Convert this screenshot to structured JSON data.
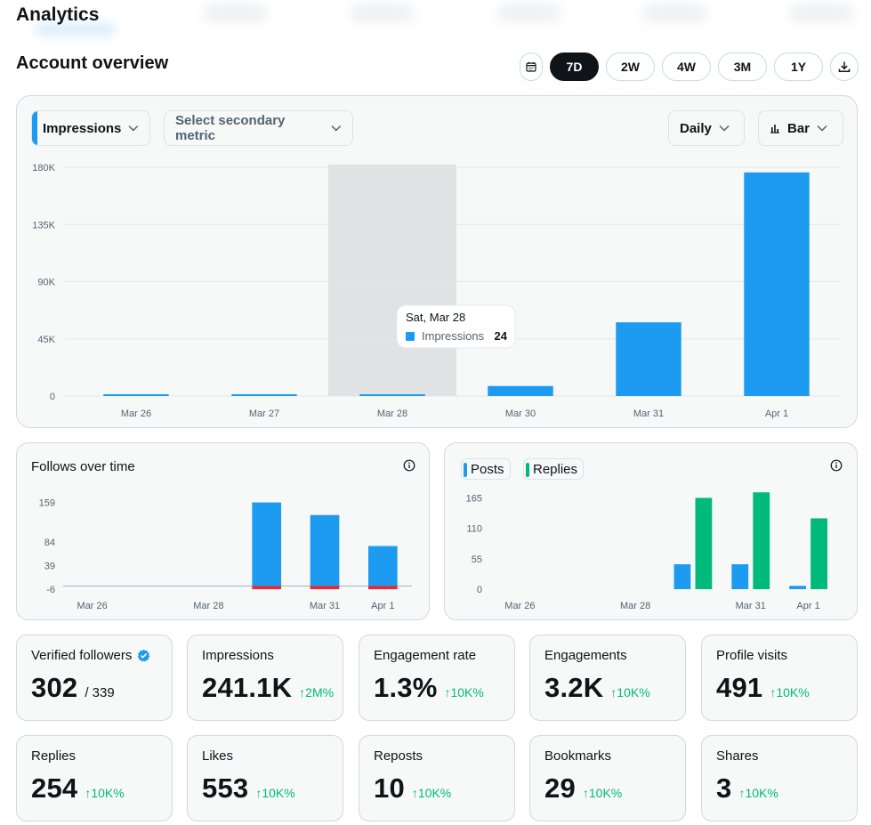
{
  "app": {
    "title": "Analytics"
  },
  "section": {
    "title": "Account overview"
  },
  "range": {
    "options": [
      "7D",
      "2W",
      "4W",
      "3M",
      "1Y"
    ],
    "selected": "7D"
  },
  "main_chart": {
    "primary_metric": "Impressions",
    "secondary_placeholder": "Select secondary metric",
    "granularity": "Daily",
    "chart_type_label": "Bar",
    "tooltip": {
      "date": "Sat, Mar 28",
      "metric": "Impressions",
      "value": "24"
    }
  },
  "follows_chart": {
    "title": "Follows over time"
  },
  "posts_chart": {
    "legend": [
      "Posts",
      "Replies"
    ]
  },
  "colors": {
    "blue": "#1d9bf0",
    "green": "#00ba7c",
    "red": "#f4212e",
    "text": "#0f1419",
    "muted": "#536471"
  },
  "chart_data": [
    {
      "type": "bar",
      "categories": [
        "Mar 26",
        "Mar 27",
        "Mar 28",
        "Mar 30",
        "Mar 31",
        "Apr 1"
      ],
      "series": [
        {
          "name": "Impressions",
          "values": [
            40,
            70,
            24,
            7900,
            58000,
            176000
          ]
        }
      ],
      "yticks": [
        "0",
        "45K",
        "90K",
        "135K",
        "180K"
      ],
      "ylim": [
        0,
        180000
      ],
      "highlight_category": "Mar 28",
      "grid": true
    },
    {
      "type": "bar",
      "title": "Follows over time",
      "x_labels": [
        "Mar 26",
        "Mar 28",
        "Mar 31",
        "Apr 1"
      ],
      "slots": [
        "Mar 26",
        "Mar 27",
        "Mar 28",
        "Mar 30",
        "Mar 31",
        "Apr 1"
      ],
      "series": [
        {
          "values": [
            0,
            0,
            0,
            159,
            135,
            76
          ]
        },
        {
          "values": [
            0,
            0,
            0,
            -6,
            -6,
            -6
          ]
        }
      ],
      "yticks": [
        "-6",
        "39",
        "84",
        "159"
      ],
      "ylim": [
        -6,
        165
      ],
      "grid": false
    },
    {
      "type": "bar",
      "x_labels": [
        "Mar 26",
        "Mar 28",
        "Mar 31",
        "Apr 1"
      ],
      "slots": [
        "Mar 26",
        "Mar 27",
        "Mar 28",
        "Mar 30",
        "Mar 31",
        "Apr 1"
      ],
      "series": [
        {
          "name": "Posts",
          "values": [
            0,
            0,
            0,
            45,
            45,
            6
          ]
        },
        {
          "name": "Replies",
          "values": [
            0,
            0,
            0,
            165,
            175,
            128
          ]
        }
      ],
      "yticks": [
        "0",
        "55",
        "110",
        "165"
      ],
      "ylim": [
        0,
        185
      ],
      "grid": false
    }
  ],
  "stats": [
    {
      "label": "Verified followers",
      "value": "302",
      "sub": "/ 339",
      "delta": "",
      "verified": true
    },
    {
      "label": "Impressions",
      "value": "241.1K",
      "sub": "",
      "delta": "2M%"
    },
    {
      "label": "Engagement rate",
      "value": "1.3%",
      "sub": "",
      "delta": "10K%"
    },
    {
      "label": "Engagements",
      "value": "3.2K",
      "sub": "",
      "delta": "10K%"
    },
    {
      "label": "Profile visits",
      "value": "491",
      "sub": "",
      "delta": "10K%"
    },
    {
      "label": "Replies",
      "value": "254",
      "sub": "",
      "delta": "10K%"
    },
    {
      "label": "Likes",
      "value": "553",
      "sub": "",
      "delta": "10K%"
    },
    {
      "label": "Reposts",
      "value": "10",
      "sub": "",
      "delta": "10K%"
    },
    {
      "label": "Bookmarks",
      "value": "29",
      "sub": "",
      "delta": "10K%"
    },
    {
      "label": "Shares",
      "value": "3",
      "sub": "",
      "delta": "10K%"
    }
  ]
}
